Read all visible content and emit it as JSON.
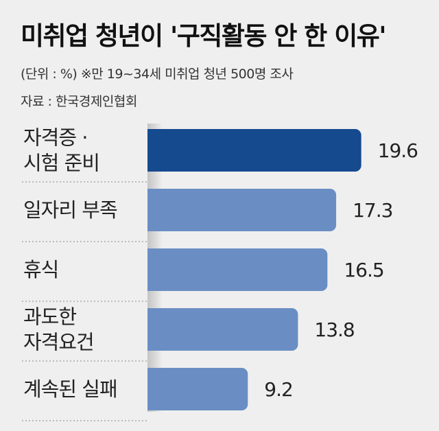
{
  "title": "미취업 청년이 '구직활동 안 한 이유'",
  "unit_note": "(단위 : %)  ※만 19~34세 미취업 청년 500명 조사",
  "source": "자료 : 한국경제인협회",
  "colors": {
    "highlight": "#154a8f",
    "bar": "#6a8ec4",
    "axis_shade": "#c4c4c4",
    "background": "#efefef"
  },
  "chart_data": {
    "type": "bar",
    "orientation": "horizontal",
    "categories": [
      [
        "자격증 ·",
        "시험 준비"
      ],
      [
        "일자리 부족"
      ],
      [
        "휴식"
      ],
      [
        "과도한",
        "자격요건"
      ],
      [
        "계속된 실패"
      ]
    ],
    "values": [
      19.6,
      17.3,
      16.5,
      13.8,
      9.2
    ],
    "value_labels": [
      "19.6",
      "17.3",
      "16.5",
      "13.8",
      "9.2"
    ],
    "xlim": [
      0,
      20
    ],
    "grid": false,
    "legend": "none"
  }
}
